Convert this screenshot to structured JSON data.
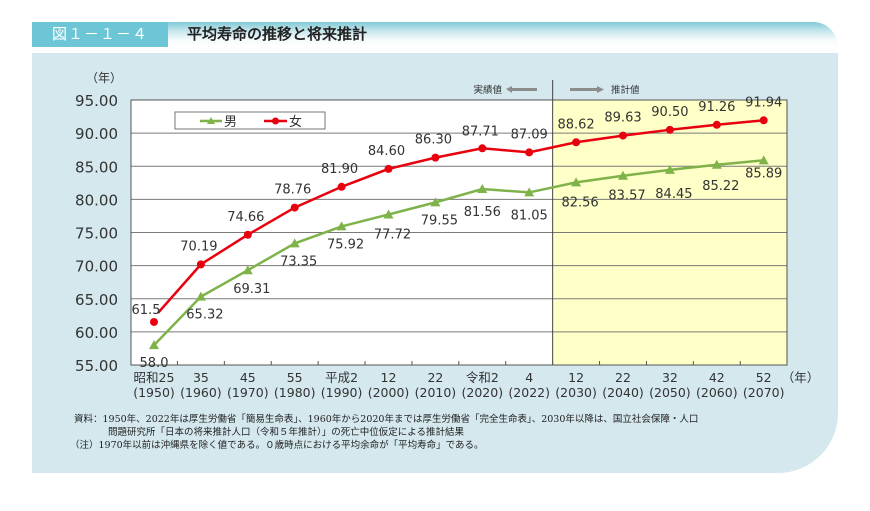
{
  "header": {
    "figure_label": "図１－１－４",
    "title": "平均寿命の推移と将来推計"
  },
  "colors": {
    "label_bg": "#6cc6d6",
    "panel_bg": "#d4e8ee",
    "projection_bg": "#ffffc8",
    "male": "#7fb34a",
    "female": "#e8000f",
    "arrow": "#8c8c8c"
  },
  "annotations": {
    "actual": "実績値",
    "projection": "推計値",
    "y_unit": "（年）",
    "x_unit": "（年）"
  },
  "legend": {
    "male": "男",
    "female": "女"
  },
  "chart_data": {
    "type": "line",
    "title": "平均寿命の推移と将来推計",
    "xlabel": "（年）",
    "ylabel": "（年）",
    "ylim": [
      55,
      95
    ],
    "yticks": [
      "95.00",
      "90.00",
      "85.00",
      "80.00",
      "75.00",
      "70.00",
      "65.00",
      "60.00",
      "55.00"
    ],
    "grid": true,
    "legend_position": "top-left (inside plot)",
    "categories": [
      {
        "era": "昭和25",
        "year": "(1950)"
      },
      {
        "era": "35",
        "year": "(1960)"
      },
      {
        "era": "45",
        "year": "(1970)"
      },
      {
        "era": "55",
        "year": "(1980)"
      },
      {
        "era": "平成2",
        "year": "(1990)"
      },
      {
        "era": "12",
        "year": "(2000)"
      },
      {
        "era": "22",
        "year": "(2010)"
      },
      {
        "era": "令和2",
        "year": "(2020)"
      },
      {
        "era": "4",
        "year": "(2022)"
      },
      {
        "era": "12",
        "year": "(2030)"
      },
      {
        "era": "22",
        "year": "(2040)"
      },
      {
        "era": "32",
        "year": "(2050)"
      },
      {
        "era": "42",
        "year": "(2060)"
      },
      {
        "era": "52",
        "year": "(2070)"
      }
    ],
    "x": [
      1950,
      1960,
      1970,
      1980,
      1990,
      2000,
      2010,
      2020,
      2022,
      2030,
      2040,
      2050,
      2060,
      2070
    ],
    "projection_starts_after_index": 8,
    "series": [
      {
        "name": "男",
        "marker": "triangle",
        "values": [
          58.0,
          65.32,
          69.31,
          73.35,
          75.92,
          77.72,
          79.55,
          81.56,
          81.05,
          82.56,
          83.57,
          84.45,
          85.22,
          85.89
        ],
        "labels": [
          "58.0",
          "65.32",
          "69.31",
          "73.35",
          "75.92",
          "77.72",
          "79.55",
          "81.56",
          "81.05",
          "82.56",
          "83.57",
          "84.45",
          "85.22",
          "85.89"
        ]
      },
      {
        "name": "女",
        "marker": "circle",
        "values": [
          61.5,
          70.19,
          74.66,
          78.76,
          81.9,
          84.6,
          86.3,
          87.71,
          87.09,
          88.62,
          89.63,
          90.5,
          91.26,
          91.94
        ],
        "labels": [
          "61.5",
          "70.19",
          "74.66",
          "78.76",
          "81.90",
          "84.60",
          "86.30",
          "87.71",
          "87.09",
          "88.62",
          "89.63",
          "90.50",
          "91.26",
          "91.94"
        ]
      }
    ]
  },
  "notes": [
    "資料：1950年、2022年は厚生労働省「簡易生命表」、1960年から2020年までは厚生労働省「完全生命表」、2030年以降は、国立社会保障・人口",
    "問題研究所「日本の将来推計人口（令和５年推計）」の死亡中位仮定による推計結果",
    "（注）1970年以前は沖縄県を除く値である。０歳時点における平均余命が「平均寿命」である。"
  ]
}
